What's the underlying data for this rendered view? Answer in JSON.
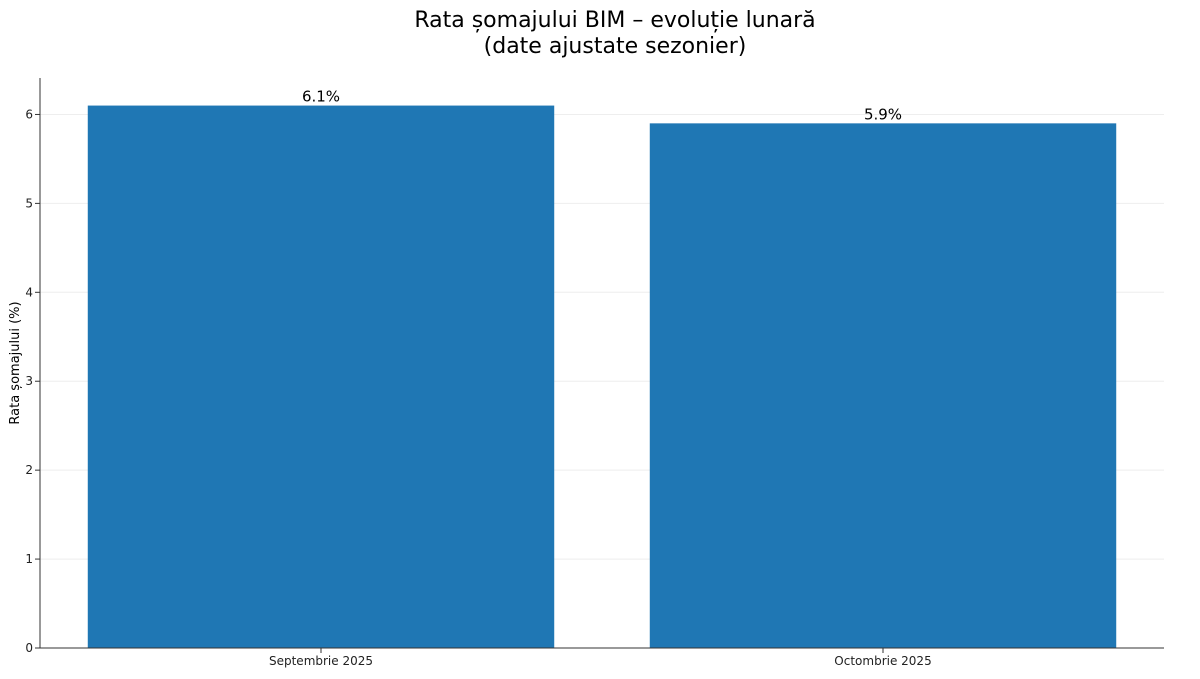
{
  "chart_data": {
    "type": "bar",
    "title_lines": [
      "Rata șomajului BIM – evoluție lunară",
      "(date ajustate sezonier)"
    ],
    "xlabel": "",
    "ylabel": "Rata șomajului (%)",
    "categories": [
      "Septembrie 2025",
      "Octombrie 2025"
    ],
    "values": [
      6.1,
      5.9
    ],
    "value_labels": [
      "6.1%",
      "5.9%"
    ],
    "ylim": [
      0,
      6.41
    ],
    "yticks": [
      0,
      1,
      2,
      3,
      4,
      5,
      6
    ],
    "grid": "horizontal",
    "legend": "none",
    "colors": {
      "bar": "#1f77b4",
      "axis": "#333333",
      "grid": "#eeeeee"
    }
  }
}
